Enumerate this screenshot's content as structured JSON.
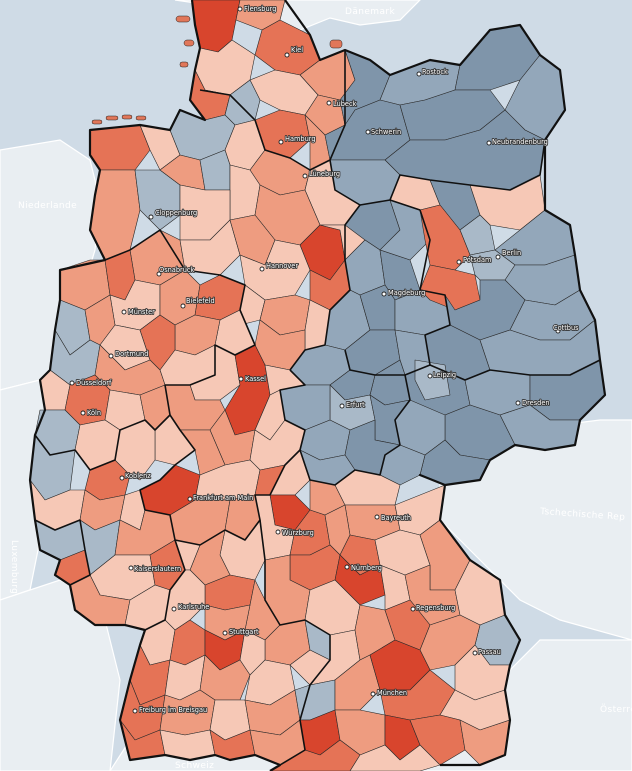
{
  "colors": {
    "sea": "#cfdbe6",
    "neighbor_land": "#e9eef2",
    "east_blue_dark": "#7f95aa",
    "east_blue_mid": "#93a7ba",
    "east_blue_light": "#a9b9c8",
    "red_light": "#f6c8b6",
    "red_mid": "#ee9c80",
    "red_strong": "#e57356",
    "red_dark": "#d8452d"
  },
  "countries": [
    {
      "id": "daenemark",
      "label": "Dänemark"
    },
    {
      "id": "niederlande",
      "label": "Niederlande"
    },
    {
      "id": "luxemburg",
      "label": "Luxemburg"
    },
    {
      "id": "tschechien",
      "label": "Tschechische Rep"
    },
    {
      "id": "oesterreich",
      "label": "Österreich"
    },
    {
      "id": "schweiz",
      "label": "Schweiz"
    }
  ],
  "cities": [
    {
      "id": "flensburg",
      "label": "Flensburg"
    },
    {
      "id": "kiel",
      "label": "Kiel"
    },
    {
      "id": "rostock",
      "label": "Rostock"
    },
    {
      "id": "luebeck",
      "label": "Lübeck"
    },
    {
      "id": "schwerin",
      "label": "Schwerin"
    },
    {
      "id": "hamburg",
      "label": "Hamburg"
    },
    {
      "id": "neubrandenburg",
      "label": "Neubrandenburg"
    },
    {
      "id": "lueneburg",
      "label": "Lüneburg"
    },
    {
      "id": "cloppenburg",
      "label": "Cloppenburg"
    },
    {
      "id": "berlin",
      "label": "Berlin"
    },
    {
      "id": "potsdam",
      "label": "Potsdam"
    },
    {
      "id": "hannover",
      "label": "Hannover"
    },
    {
      "id": "osnabrueck",
      "label": "Osnabrück"
    },
    {
      "id": "magdeburg",
      "label": "Magdeburg"
    },
    {
      "id": "bielefeld",
      "label": "Bielefeld"
    },
    {
      "id": "muenster",
      "label": "Münster"
    },
    {
      "id": "cottbus",
      "label": "Cottbus"
    },
    {
      "id": "dortmund",
      "label": "Dortmund"
    },
    {
      "id": "leipzig",
      "label": "Leipzig"
    },
    {
      "id": "kassel",
      "label": "Kassel"
    },
    {
      "id": "duesseldorf",
      "label": "Düsseldorf"
    },
    {
      "id": "dresden",
      "label": "Dresden"
    },
    {
      "id": "erfurt",
      "label": "Erfurt"
    },
    {
      "id": "koeln",
      "label": "Köln"
    },
    {
      "id": "koblenz",
      "label": "Koblenz"
    },
    {
      "id": "frankfurt",
      "label": "Frankfurt am Main"
    },
    {
      "id": "bayreuth",
      "label": "Bayreuth"
    },
    {
      "id": "wuerzburg",
      "label": "Würzburg"
    },
    {
      "id": "kaiserslautern",
      "label": "Kaiserslautern"
    },
    {
      "id": "nuernberg",
      "label": "Nürnberg"
    },
    {
      "id": "karlsruhe",
      "label": "Karlsruhe"
    },
    {
      "id": "regensburg",
      "label": "Regensburg"
    },
    {
      "id": "stuttgart",
      "label": "Stuttgart"
    },
    {
      "id": "passau",
      "label": "Passau"
    },
    {
      "id": "muenchen",
      "label": "München"
    },
    {
      "id": "freiburg",
      "label": "Freiburg im Breisgau"
    }
  ]
}
